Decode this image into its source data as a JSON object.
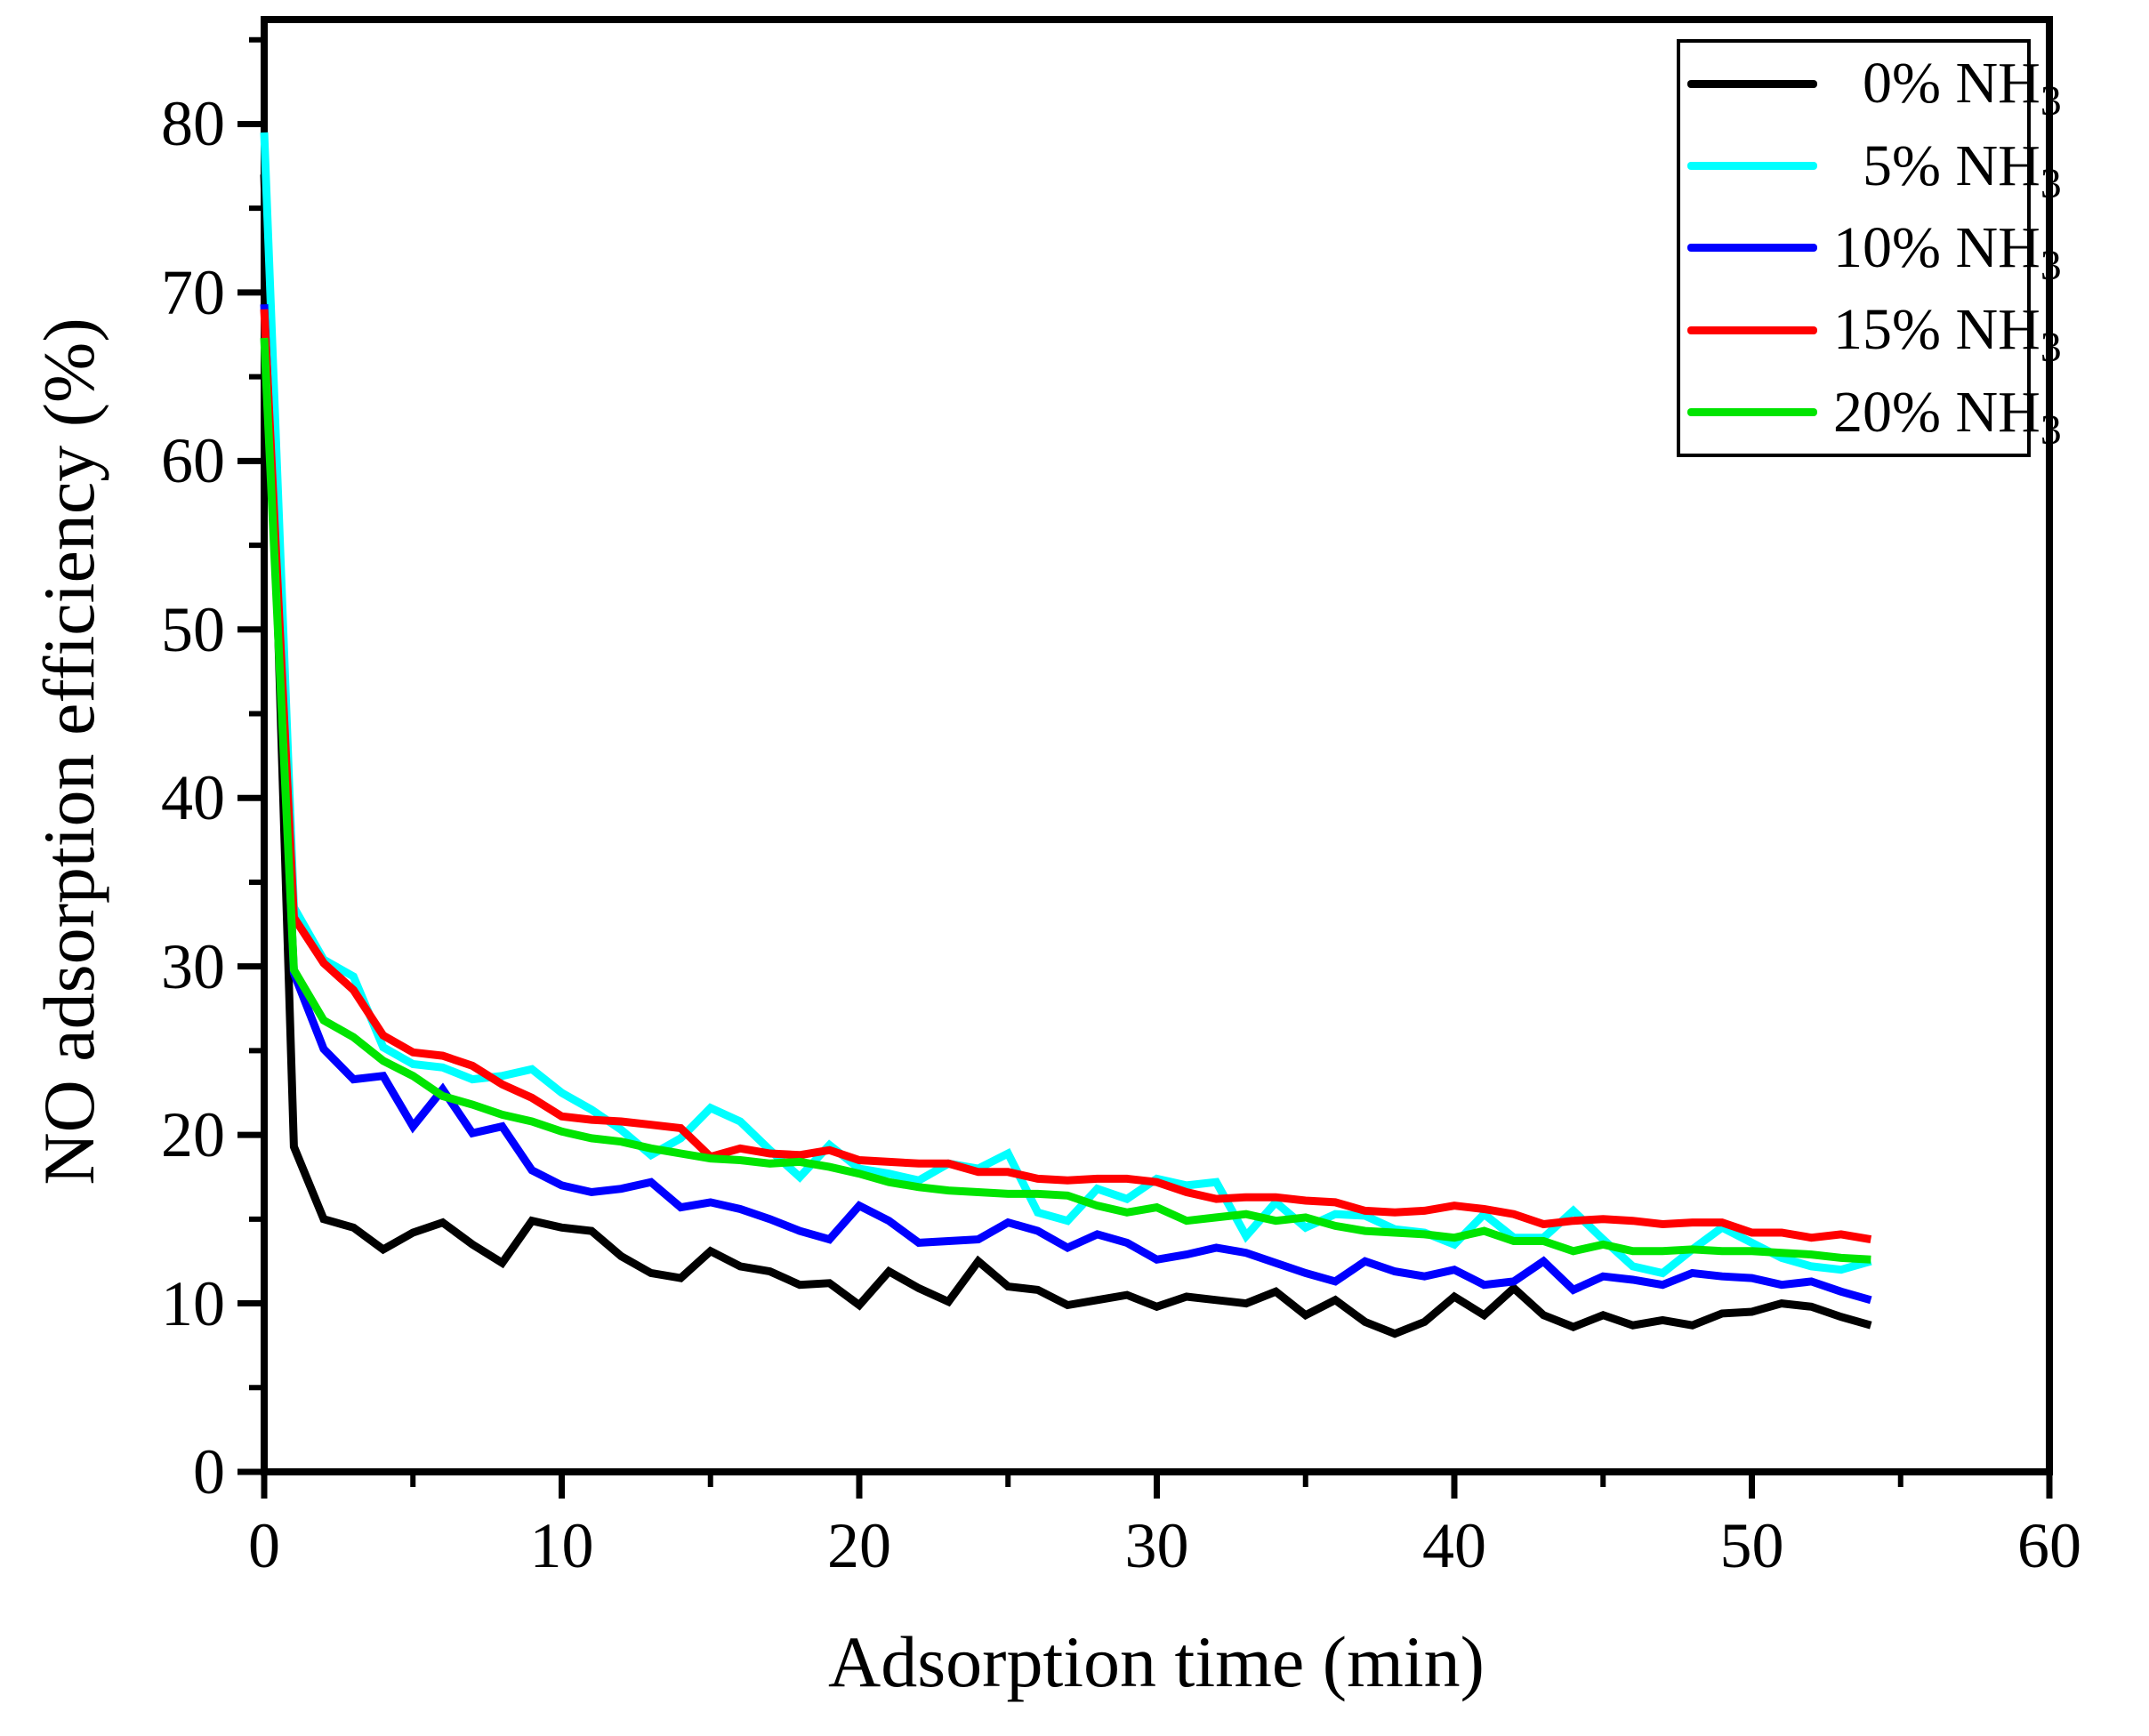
{
  "figure_title": "",
  "accent_colors": {
    "axis": "#000000",
    "background": "#ffffff"
  },
  "legend": {
    "position": "top-right",
    "entries": [
      {
        "num": "0",
        "rest": "% NH",
        "sub": "3",
        "color": "#000000"
      },
      {
        "num": "5",
        "rest": "% NH",
        "sub": "3",
        "color": "#00ffff"
      },
      {
        "num": "10",
        "rest": "% NH",
        "sub": "3",
        "color": "#0000ff"
      },
      {
        "num": "15",
        "rest": "% NH",
        "sub": "3",
        "color": "#ff0000"
      },
      {
        "num": "20",
        "rest": "% NH",
        "sub": "3",
        "color": "#00e400"
      }
    ]
  },
  "chart_data": {
    "type": "line",
    "title": "",
    "xlabel": "Adsorption time (min)",
    "ylabel": "NO adsorption efficiency (%)",
    "xlim": [
      0,
      60
    ],
    "ylim": [
      0,
      86.2
    ],
    "x_major_ticks": [
      0,
      10,
      20,
      30,
      40,
      50,
      60
    ],
    "x_minor_ticks": [
      5,
      15,
      25,
      35,
      45,
      55
    ],
    "y_major_ticks": [
      0,
      10,
      20,
      30,
      40,
      50,
      60,
      70,
      80
    ],
    "y_minor_ticks": [
      5,
      15,
      25,
      35,
      45,
      55,
      65,
      75,
      85
    ],
    "grid": false,
    "x": [
      0,
      1,
      2,
      3,
      4,
      5,
      6,
      7,
      8,
      9,
      10,
      11,
      12,
      13,
      14,
      15,
      16,
      17,
      18,
      19,
      20,
      21,
      22,
      23,
      24,
      25,
      26,
      27,
      28,
      29,
      30,
      31,
      32,
      33,
      34,
      35,
      36,
      37,
      38,
      39,
      40,
      41,
      42,
      43,
      44,
      45,
      46,
      47,
      48,
      49,
      50,
      51,
      52,
      53,
      54
    ],
    "series": [
      {
        "name": "0% NH3",
        "color": "#000000",
        "values": [
          77,
          19.3,
          15,
          14.5,
          13.2,
          14.2,
          14.8,
          13.5,
          12.4,
          14.9,
          14.5,
          14.3,
          12.8,
          11.8,
          11.5,
          13.1,
          12.2,
          11.9,
          11.1,
          11.2,
          9.9,
          11.9,
          10.9,
          10.1,
          12.5,
          11,
          10.8,
          9.9,
          10.2,
          10.5,
          9.8,
          10.4,
          10.2,
          10,
          10.7,
          9.3,
          10.2,
          8.9,
          8.2,
          8.9,
          10.4,
          9.3,
          10.9,
          9.3,
          8.6,
          9.3,
          8.7,
          9,
          8.7,
          9.4,
          9.5,
          10,
          9.8,
          9.2,
          8.7
        ]
      },
      {
        "name": "5% NH3",
        "color": "#00ffff",
        "values": [
          79.5,
          33.5,
          30.4,
          29.4,
          25.2,
          24.2,
          24,
          23.3,
          23.5,
          23.9,
          22.5,
          21.5,
          20.3,
          18.8,
          19.8,
          21.6,
          20.8,
          19.1,
          17.5,
          19.4,
          18,
          17.7,
          17.3,
          18.3,
          18,
          18.9,
          15.4,
          14.9,
          16.8,
          16.2,
          17.4,
          17,
          17.2,
          14,
          16,
          14.5,
          15.3,
          15.2,
          14.4,
          14.2,
          13.5,
          15.3,
          13.9,
          13.9,
          15.5,
          13.8,
          12.2,
          11.8,
          13.2,
          14.5,
          13.6,
          12.7,
          12.2,
          12,
          12.5
        ]
      },
      {
        "name": "10% NH3",
        "color": "#0000ff",
        "values": [
          69.3,
          29.6,
          25.1,
          23.3,
          23.5,
          20.5,
          22.7,
          20.1,
          20.5,
          17.9,
          17,
          16.6,
          16.8,
          17.2,
          15.7,
          16,
          15.6,
          15,
          14.3,
          13.8,
          15.8,
          14.9,
          13.6,
          13.7,
          13.8,
          14.8,
          14.3,
          13.3,
          14.1,
          13.6,
          12.6,
          12.9,
          13.3,
          13,
          12.4,
          11.8,
          11.3,
          12.5,
          11.9,
          11.6,
          12,
          11.1,
          11.3,
          12.5,
          10.8,
          11.6,
          11.4,
          11.1,
          11.8,
          11.6,
          11.5,
          11.1,
          11.3,
          10.7,
          10.2
        ]
      },
      {
        "name": "15% NH3",
        "color": "#ff0000",
        "values": [
          69,
          32.9,
          30.2,
          28.6,
          25.9,
          24.9,
          24.7,
          24.1,
          23,
          22.2,
          21.1,
          20.9,
          20.8,
          20.6,
          20.4,
          18.7,
          19.2,
          18.9,
          18.8,
          19.1,
          18.5,
          18.4,
          18.3,
          18.3,
          17.8,
          17.8,
          17.4,
          17.3,
          17.4,
          17.4,
          17.2,
          16.6,
          16.2,
          16.3,
          16.3,
          16.1,
          16,
          15.5,
          15.4,
          15.5,
          15.8,
          15.6,
          15.3,
          14.7,
          14.9,
          15,
          14.9,
          14.7,
          14.8,
          14.8,
          14.2,
          14.2,
          13.9,
          14.1,
          13.8
        ]
      },
      {
        "name": "20% NH3",
        "color": "#00e400",
        "values": [
          67.3,
          29.8,
          26.8,
          25.8,
          24.4,
          23.5,
          22.3,
          21.8,
          21.2,
          20.8,
          20.2,
          19.8,
          19.6,
          19.2,
          18.9,
          18.6,
          18.5,
          18.3,
          18.4,
          18.1,
          17.7,
          17.2,
          16.9,
          16.7,
          16.6,
          16.5,
          16.5,
          16.4,
          15.8,
          15.4,
          15.7,
          14.9,
          15.1,
          15.3,
          14.9,
          15.1,
          14.6,
          14.3,
          14.2,
          14.1,
          13.9,
          14.3,
          13.7,
          13.7,
          13.1,
          13.5,
          13.1,
          13.1,
          13.2,
          13.1,
          13.1,
          13,
          12.9,
          12.7,
          12.6
        ]
      }
    ]
  }
}
